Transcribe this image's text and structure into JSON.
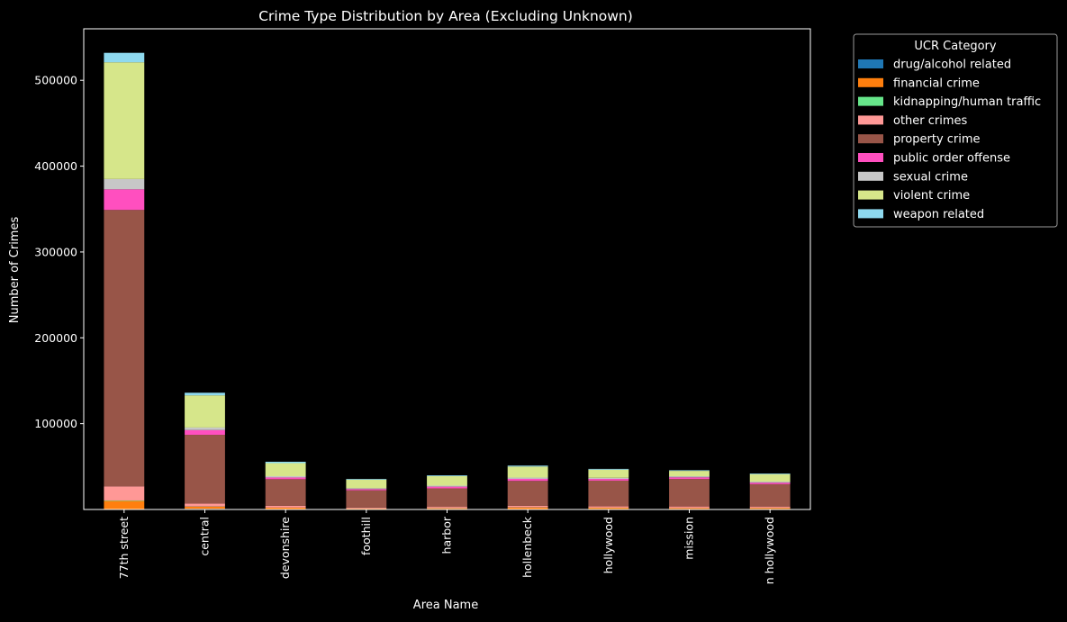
{
  "chart_data": {
    "type": "bar",
    "stacked": true,
    "title": "Crime Type Distribution by Area (Excluding Unknown)",
    "xlabel": "Area Name",
    "ylabel": "Number of Crimes",
    "ylim": [
      0,
      560000
    ],
    "yticks": [
      100000,
      200000,
      300000,
      400000,
      500000
    ],
    "grid": false,
    "legend_title": "UCR Category",
    "legend_position": "outside-top-right",
    "categories": [
      "77th street",
      "central",
      "devonshire",
      "foothill",
      "harbor",
      "hollenbeck",
      "hollywood",
      "mission",
      "n hollywood"
    ],
    "series": [
      {
        "name": "drug/alcohol related",
        "color": "#1f77b4",
        "values": [
          500,
          800,
          300,
          200,
          250,
          350,
          400,
          300,
          350
        ]
      },
      {
        "name": "financial crime",
        "color": "#ff7f0e",
        "values": [
          9500,
          2500,
          1800,
          900,
          1200,
          2000,
          1600,
          1400,
          1500
        ]
      },
      {
        "name": "kidnapping/human traffic",
        "color": "#66e68a",
        "values": [
          500,
          200,
          100,
          100,
          150,
          150,
          100,
          100,
          100
        ]
      },
      {
        "name": "other crimes",
        "color": "#ff9896",
        "values": [
          16500,
          3500,
          2100,
          1100,
          1500,
          1800,
          1500,
          1700,
          1500
        ]
      },
      {
        "name": "property crime",
        "color": "#985548",
        "values": [
          322000,
          80000,
          31000,
          20000,
          21500,
          29000,
          30000,
          32000,
          26000
        ]
      },
      {
        "name": "public order offense",
        "color": "#ff4fbf",
        "values": [
          24000,
          5500,
          2000,
          1500,
          2000,
          2400,
          2000,
          2000,
          1800
        ]
      },
      {
        "name": "sexual crime",
        "color": "#c7c7c7",
        "values": [
          12000,
          3000,
          1500,
          1000,
          1200,
          1500,
          1300,
          1200,
          1200
        ]
      },
      {
        "name": "violent crime",
        "color": "#d6e68a",
        "values": [
          136000,
          37500,
          15200,
          10000,
          11000,
          12800,
          9500,
          6300,
          8700
        ]
      },
      {
        "name": "weapon related",
        "color": "#8ed9ef",
        "values": [
          11000,
          3000,
          1600,
          800,
          900,
          1100,
          900,
          700,
          800
        ]
      }
    ]
  }
}
